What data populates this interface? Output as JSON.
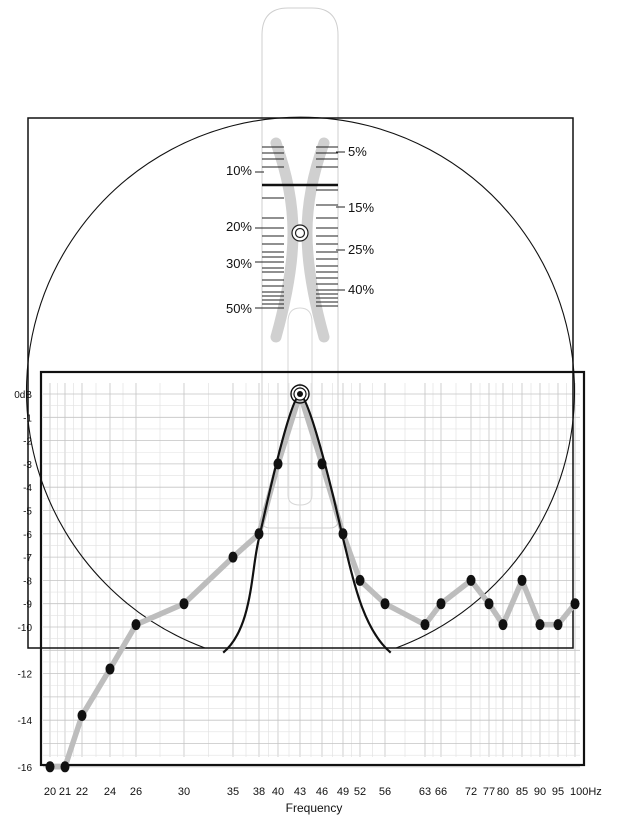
{
  "chart_data": {
    "type": "line",
    "xlabel": "Frequency",
    "ylabel": "",
    "ylim": [
      -16,
      0
    ],
    "grid": true,
    "x_ticks": [
      "20",
      "21",
      "22",
      "24",
      "26",
      "30",
      "35",
      "38",
      "40",
      "43",
      "46",
      "49",
      "52",
      "56",
      "63",
      "66",
      "72",
      "77",
      "80",
      "85",
      "90",
      "95",
      "100Hz"
    ],
    "y_ticks": [
      "0dB",
      "-1",
      "-2",
      "-3",
      "-4",
      "-5",
      "-6",
      "-7",
      "-8",
      "-9",
      "-10",
      "-12",
      "-14",
      "-16"
    ],
    "series": [
      {
        "style": "measured-points",
        "color": "#bdbdbd",
        "points": [
          {
            "x": 20,
            "y": -16
          },
          {
            "x": 21,
            "y": -16
          },
          {
            "x": 22,
            "y": -13.8
          },
          {
            "x": 24,
            "y": -11.8
          },
          {
            "x": 26,
            "y": -9.9
          },
          {
            "x": 30,
            "y": -9
          },
          {
            "x": 35,
            "y": -7
          },
          {
            "x": 38,
            "y": -6
          },
          {
            "x": 40,
            "y": -3
          },
          {
            "x": 43,
            "y": 0
          },
          {
            "x": 46,
            "y": -3
          },
          {
            "x": 49,
            "y": -6
          },
          {
            "x": 52,
            "y": -8
          },
          {
            "x": 56,
            "y": -9
          },
          {
            "x": 63,
            "y": -9.9
          },
          {
            "x": 66,
            "y": -9
          },
          {
            "x": 72,
            "y": -8
          },
          {
            "x": 77,
            "y": -9
          },
          {
            "x": 80,
            "y": -9.9
          },
          {
            "x": 85,
            "y": -8
          },
          {
            "x": 90,
            "y": -9.9
          },
          {
            "x": 95,
            "y": -9.9
          },
          {
            "x": 100,
            "y": -9
          }
        ]
      },
      {
        "style": "resonance-curve",
        "color": "#111111",
        "points": [
          {
            "x": 34,
            "y": -11.1
          },
          {
            "x": 38,
            "y": -6.2
          },
          {
            "x": 40,
            "y": -3.1
          },
          {
            "x": 43,
            "y": 0
          },
          {
            "x": 46,
            "y": -3.1
          },
          {
            "x": 49,
            "y": -6.2
          },
          {
            "x": 57,
            "y": -11.1
          }
        ]
      }
    ],
    "peak": {
      "x": 43,
      "y": 0
    },
    "overlay": {
      "type": "bandwidth-gauge",
      "left_labels": [
        "10%",
        "20%",
        "30%",
        "50%"
      ],
      "right_labels": [
        "5%",
        "15%",
        "25%",
        "40%"
      ]
    }
  }
}
